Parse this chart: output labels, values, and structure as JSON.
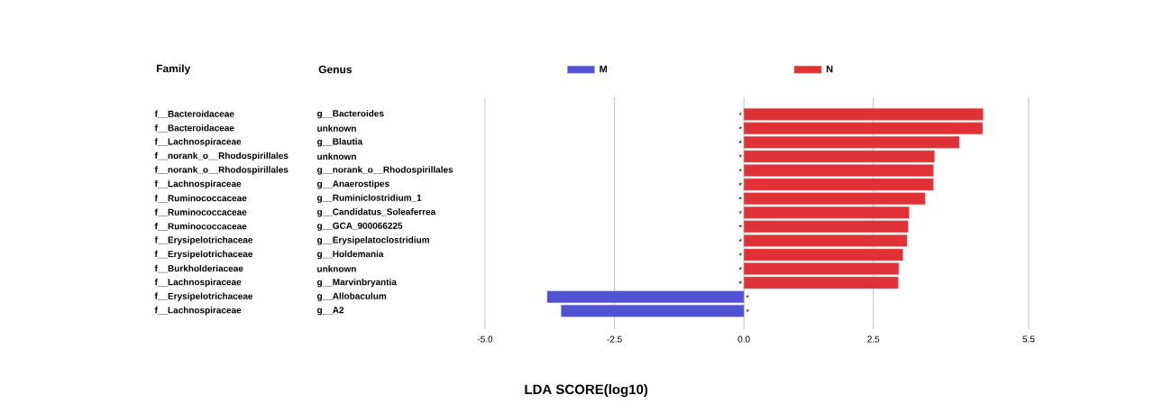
{
  "chart_data": {
    "type": "bar",
    "orientation": "horizontal",
    "xlabel": "LDA SCORE(log10)",
    "annotations": [
      "Family",
      "Genus"
    ],
    "categories": [
      "g__Bacteroides",
      "unknown",
      "g__Blautia",
      "unknown",
      "g__norank_o__Rhodospirillales",
      "g__Anaerostipes",
      "g__Ruminiclostridium_1",
      "g__Candidatus_Soleaferrea",
      "g__GCA_900066225",
      "g__Erysipelatoclostridium",
      "g__Holdemania",
      "unknown",
      "g__Marvinbryantia",
      "g__Allobaculum",
      "g__A2"
    ],
    "y2_categories": [
      "f__Bacteroidaceae",
      "f__Bacteroidaceae",
      "f__Lachnospiraceae",
      "f__norank_o__Rhodospirillales",
      "f__norank_o__Rhodospirillales",
      "f__Lachnospiraceae",
      "f__Ruminococcaceae",
      "f__Ruminococcaceae",
      "f__Ruminococcaceae",
      "f__Erysipelotrichaceae",
      "f__Erysipelotrichaceae",
      "f__Burkholderiaceae",
      "f__Lachnospiraceae",
      "f__Erysipelotrichaceae",
      "f__Lachnospiraceae"
    ],
    "series": [
      {
        "name": "M",
        "color": "#5152d6",
        "values": [
          null,
          null,
          null,
          null,
          null,
          null,
          null,
          null,
          null,
          null,
          null,
          null,
          null,
          -3.8,
          -3.53
        ],
        "value_labels": [
          null,
          null,
          null,
          null,
          null,
          null,
          null,
          null,
          null,
          null,
          null,
          null,
          null,
          "*",
          "*"
        ]
      },
      {
        "name": "N",
        "color": "#e03236",
        "values": [
          4.62,
          4.61,
          4.16,
          3.68,
          3.66,
          3.66,
          3.5,
          3.19,
          3.17,
          3.15,
          3.07,
          2.99,
          2.98,
          null,
          null
        ],
        "value_labels": [
          "*",
          "*",
          "*",
          "*",
          "*",
          "*",
          "*",
          "*",
          "*",
          "*",
          "*",
          "*",
          "*",
          null,
          null
        ]
      }
    ],
    "xlim": [
      -5,
      5.5
    ],
    "xticks": [
      {
        "value": -5,
        "label": "-5.0"
      },
      {
        "value": -2.5,
        "label": "-2.5"
      },
      {
        "value": 0,
        "label": "0.0"
      },
      {
        "value": 2.5,
        "label": "2.5"
      },
      5.5
    ],
    "grid": "x",
    "legend": "top"
  }
}
